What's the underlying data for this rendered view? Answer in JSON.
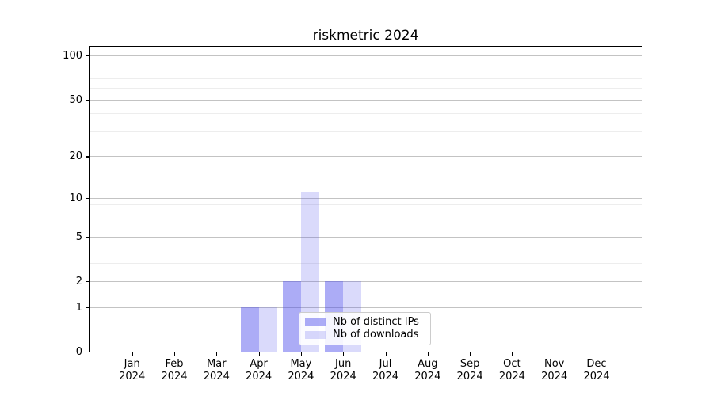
{
  "title": "riskmetric 2024",
  "colors": {
    "bar_ips": "rgba(72, 72, 235, 0.45)",
    "bar_downloads": "rgba(72, 72, 235, 0.20)",
    "grid_major": "#c3c3c3",
    "grid_minor": "#ededed",
    "axis": "#000000",
    "legend_border": "#cccccc"
  },
  "chart_data": {
    "type": "bar",
    "title": "riskmetric 2024",
    "categories": [
      "Jan 2024",
      "Feb 2024",
      "Mar 2024",
      "Apr 2024",
      "May 2024",
      "Jun 2024",
      "Jul 2024",
      "Aug 2024",
      "Sep 2024",
      "Oct 2024",
      "Nov 2024",
      "Dec 2024"
    ],
    "series": [
      {
        "name": "Nb of distinct IPs",
        "values": [
          0,
          0,
          0,
          1,
          2,
          2,
          0,
          0,
          0,
          0,
          0,
          0
        ]
      },
      {
        "name": "Nb of downloads",
        "values": [
          0,
          0,
          0,
          1,
          11,
          2,
          0,
          0,
          0,
          0,
          0,
          0
        ]
      }
    ],
    "xlabel": "",
    "ylabel": "",
    "y_scale": "log1p",
    "ylim": [
      0,
      115
    ],
    "y_ticks": [
      0,
      1,
      2,
      5,
      10,
      20,
      50,
      100
    ],
    "y_minor_gridlines": [
      3,
      4,
      6,
      7,
      8,
      9,
      30,
      40,
      60,
      70,
      80,
      90
    ],
    "grid": "on",
    "legend_position": "lower center-right inside plot"
  }
}
